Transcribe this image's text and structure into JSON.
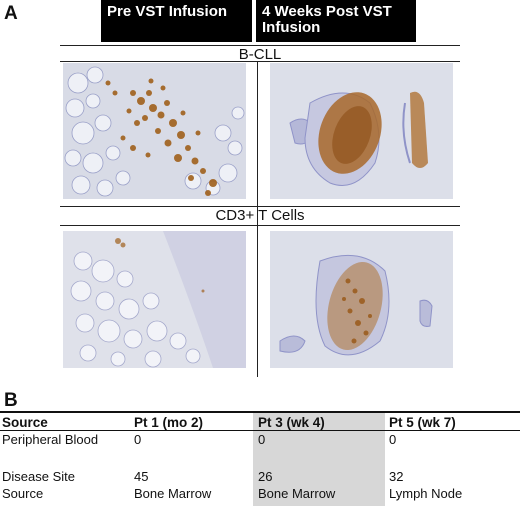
{
  "panel_a": {
    "letter": "A",
    "columns": [
      "Pre VST Infusion",
      "4 Weeks Post VST\nInfusion"
    ],
    "row_labels": [
      "B-CLL",
      "CD3+ T Cells"
    ]
  },
  "panel_b": {
    "letter": "B",
    "headers": [
      "Source",
      "Pt 1 (mo 2)",
      "Pt 3 (wk 4)",
      "Pt 5 (wk 7)"
    ],
    "rows": [
      {
        "label": "Peripheral Blood",
        "values": [
          "0",
          "0",
          "0"
        ]
      },
      {
        "label": "Disease Site",
        "values": [
          "45",
          "26",
          "32"
        ]
      },
      {
        "label": "Source",
        "values": [
          "Bone Marrow",
          "Bone Marrow",
          "Lymph Node"
        ]
      }
    ],
    "highlight_column": 2
  },
  "colors": {
    "header_bg": "#000000",
    "stain_brown": "#a0601c",
    "tissue_blue": "#8f93c8",
    "highlight": "#d7d7d7"
  }
}
